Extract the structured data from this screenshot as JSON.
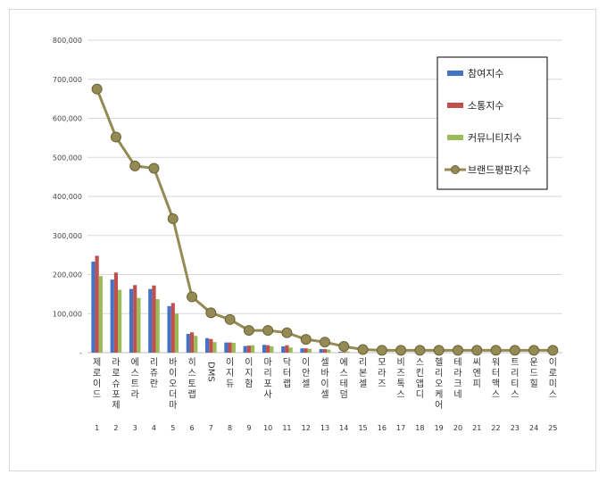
{
  "chart_data": {
    "type": "bar",
    "categories": [
      "제로이드",
      "라로슈포제",
      "에스트라",
      "리쥬란",
      "바이오더마",
      "히스토랩",
      "DMS",
      "이지듀",
      "이지함",
      "마리포사",
      "닥터랩",
      "이안셀",
      "셀바이셀",
      "에스테덤",
      "리본셀",
      "모라즈",
      "비즈톡스",
      "스킨앱디",
      "헬리오케어",
      "테라크네",
      "씨엔피",
      "워터맥스",
      "트리티스",
      "운드힐",
      "이로미스"
    ],
    "ranks": [
      "1",
      "2",
      "3",
      "4",
      "5",
      "6",
      "7",
      "8",
      "9",
      "10",
      "11",
      "12",
      "13",
      "14",
      "15",
      "16",
      "17",
      "18",
      "19",
      "20",
      "21",
      "22",
      "23",
      "24",
      "25"
    ],
    "ylim": [
      0,
      800000
    ],
    "yticks": [
      "-",
      "100,000",
      "200,000",
      "300,000",
      "400,000",
      "500,000",
      "600,000",
      "700,000",
      "800,000"
    ],
    "grid": true,
    "legend_position": "top-right",
    "series": [
      {
        "name": "참여지수",
        "type": "bar",
        "color": "#4472C4",
        "values": [
          233000,
          187000,
          163000,
          163000,
          119000,
          48000,
          37000,
          26000,
          17000,
          20000,
          16000,
          11000,
          9000,
          2000,
          0,
          0,
          0,
          0,
          0,
          0,
          0,
          0,
          0,
          0,
          0
        ]
      },
      {
        "name": "소통지수",
        "type": "bar",
        "color": "#C0504D",
        "values": [
          248000,
          205000,
          173000,
          172000,
          127000,
          52000,
          35000,
          26000,
          18000,
          19000,
          19000,
          11000,
          9000,
          2000,
          0,
          0,
          0,
          0,
          0,
          0,
          0,
          0,
          0,
          0,
          0
        ]
      },
      {
        "name": "커뮤니티지수",
        "type": "bar",
        "color": "#9BBB59",
        "values": [
          196000,
          161000,
          140000,
          137000,
          100000,
          43000,
          27000,
          25000,
          19000,
          16000,
          13000,
          10000,
          8000,
          3000,
          0,
          0,
          0,
          0,
          0,
          0,
          0,
          0,
          0,
          0,
          0
        ]
      },
      {
        "name": "브랜드평판지수",
        "type": "line",
        "color": "#948A54",
        "values": [
          675000,
          552000,
          478000,
          472000,
          343000,
          143000,
          102000,
          85000,
          57000,
          57000,
          51000,
          34000,
          27000,
          16000,
          8000,
          6000,
          6000,
          6000,
          6000,
          6000,
          6000,
          6000,
          6000,
          6000,
          6000
        ]
      }
    ]
  }
}
